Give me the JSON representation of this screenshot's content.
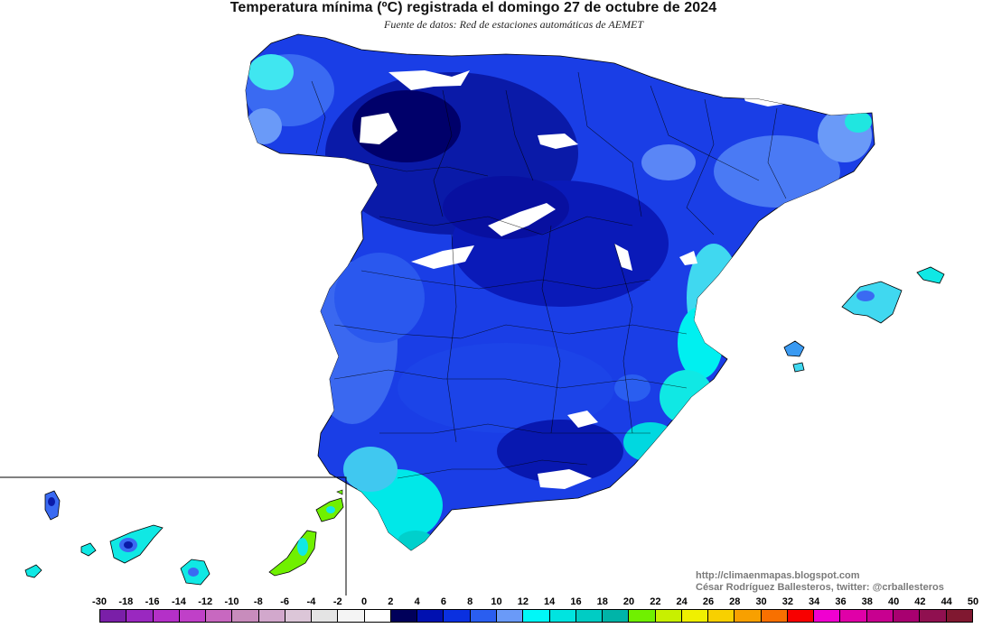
{
  "title": "Temperatura mínima (ºC) registrada el domingo 27 de octubre de 2024",
  "subtitle": "Fuente de datos: Red de estaciones automáticas de AEMET",
  "credits": {
    "blog": "http://climaenmapas.blogspot.com",
    "author": "César Rodríguez Ballesteros, twitter: @crballesteros"
  },
  "legend": {
    "labels": [
      "-30",
      "-18",
      "-16",
      "-14",
      "-12",
      "-10",
      "-8",
      "-6",
      "-4",
      "-2",
      "0",
      "2",
      "4",
      "6",
      "8",
      "10",
      "12",
      "14",
      "16",
      "18",
      "20",
      "22",
      "24",
      "26",
      "28",
      "30",
      "32",
      "34",
      "36",
      "38",
      "40",
      "42",
      "44",
      "50"
    ],
    "colors": [
      "#7a1fa8",
      "#9a28c0",
      "#b430c8",
      "#c040c8",
      "#c868c0",
      "#c88cbc",
      "#d2a8cc",
      "#dcc6d8",
      "#e4e4e4",
      "#f4f4f4",
      "#ffffff",
      "#00005a",
      "#0010b0",
      "#0a30e0",
      "#2a5ef0",
      "#6a9af8",
      "#00f8f8",
      "#00e4e0",
      "#00ccc4",
      "#00b4a8",
      "#70f000",
      "#c8f000",
      "#f0f000",
      "#f8d000",
      "#f8a000",
      "#f87000",
      "#f80000",
      "#f000d0",
      "#e000a8",
      "#c80090",
      "#a80070",
      "#901050",
      "#801830"
    ]
  },
  "regions": {
    "peninsula": "Península Ibérica",
    "baleares": "Islas Baleares",
    "canarias": "Islas Canarias"
  }
}
